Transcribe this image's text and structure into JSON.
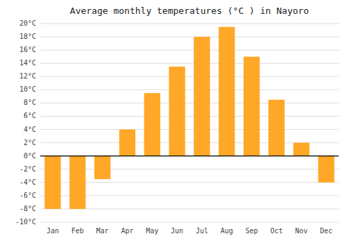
{
  "chart_data": {
    "type": "bar",
    "title": "Average monthly temperatures (°C ) in Nayoro",
    "categories": [
      "Jan",
      "Feb",
      "Mar",
      "Apr",
      "May",
      "Jun",
      "Jul",
      "Aug",
      "Sep",
      "Oct",
      "Nov",
      "Dec"
    ],
    "values": [
      -8,
      -8,
      -3.5,
      4,
      9.5,
      13.5,
      18,
      19.5,
      15,
      8.5,
      2,
      -4
    ],
    "color": "#FFA726",
    "ylim": [
      -10,
      20
    ],
    "yticks": [
      {
        "value": -10,
        "label": "-10°C"
      },
      {
        "value": -8,
        "label": "-8°C"
      },
      {
        "value": -6,
        "label": "-6°C"
      },
      {
        "value": -4,
        "label": "-4°C"
      },
      {
        "value": -2,
        "label": "-2°C"
      },
      {
        "value": 0,
        "label": "0°C"
      },
      {
        "value": 2,
        "label": "2°C"
      },
      {
        "value": 4,
        "label": "4°C"
      },
      {
        "value": 6,
        "label": "6°C"
      },
      {
        "value": 8,
        "label": "8°C"
      },
      {
        "value": 10,
        "label": "10°C"
      },
      {
        "value": 12,
        "label": "12°C"
      },
      {
        "value": 14,
        "label": "14°C"
      },
      {
        "value": 16,
        "label": "16°C"
      },
      {
        "value": 18,
        "label": "18°C"
      },
      {
        "value": 20,
        "label": "20°C"
      }
    ],
    "grid": true
  }
}
